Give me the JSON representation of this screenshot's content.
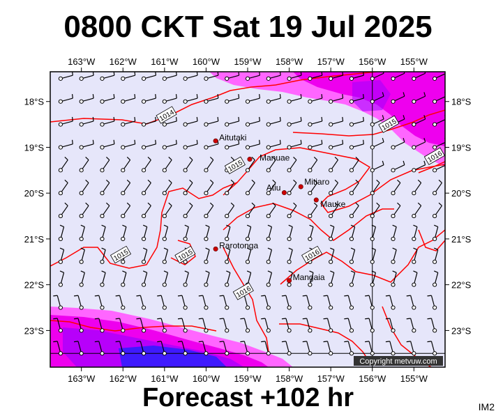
{
  "title": "0800 CKT Sat 19 Jul 2025",
  "footer": "Forecast +102 hr",
  "product_code": "IM2",
  "copyright": "Copyright metvuw.com",
  "map": {
    "lon_labels": [
      "163°W",
      "162°W",
      "161°W",
      "160°W",
      "159°W",
      "158°W",
      "157°W",
      "156°W",
      "155°W"
    ],
    "lat_labels": [
      "18°S",
      "19°S",
      "20°S",
      "21°S",
      "22°S",
      "23°S"
    ],
    "lon_range": [
      -163.75,
      -154.25
    ],
    "lat_range": [
      -23.8,
      -17.35
    ],
    "colors": {
      "background": "#e6e6fa",
      "isobar": "#ff0000",
      "rain_light": "#ff66ff",
      "rain_mid": "#ee00ee",
      "rain_heavy": "#a000ff",
      "rain_max": "#2020ff",
      "graticule": "#000000",
      "place_dot": "#cc0000"
    },
    "places": [
      {
        "name": "Aitutaki",
        "lon": -159.77,
        "lat": -18.86
      },
      {
        "name": "Manuae",
        "lon": -158.95,
        "lat": -19.26
      },
      {
        "name": "Atiu",
        "lon": -158.12,
        "lat": -19.99
      },
      {
        "name": "Mitiaro",
        "lon": -157.72,
        "lat": -19.86
      },
      {
        "name": "Mauke",
        "lon": -157.35,
        "lat": -20.15
      },
      {
        "name": "Rarotonga",
        "lon": -159.77,
        "lat": -21.22
      },
      {
        "name": "Mangaia",
        "lon": -158.0,
        "lat": -21.91
      }
    ],
    "isobar_labels": [
      {
        "text": "1014",
        "lon": -160.95,
        "lat": -18.3
      },
      {
        "text": "1015",
        "lon": -155.6,
        "lat": -18.5
      },
      {
        "text": "1016",
        "lon": -154.5,
        "lat": -19.2
      },
      {
        "text": "1015",
        "lon": -159.3,
        "lat": -19.4
      },
      {
        "text": "1015",
        "lon": -162.05,
        "lat": -21.35
      },
      {
        "text": "1015",
        "lon": -160.5,
        "lat": -21.35
      },
      {
        "text": "1016",
        "lon": -157.45,
        "lat": -21.35
      },
      {
        "text": "1016",
        "lon": -159.1,
        "lat": -22.15
      }
    ]
  }
}
